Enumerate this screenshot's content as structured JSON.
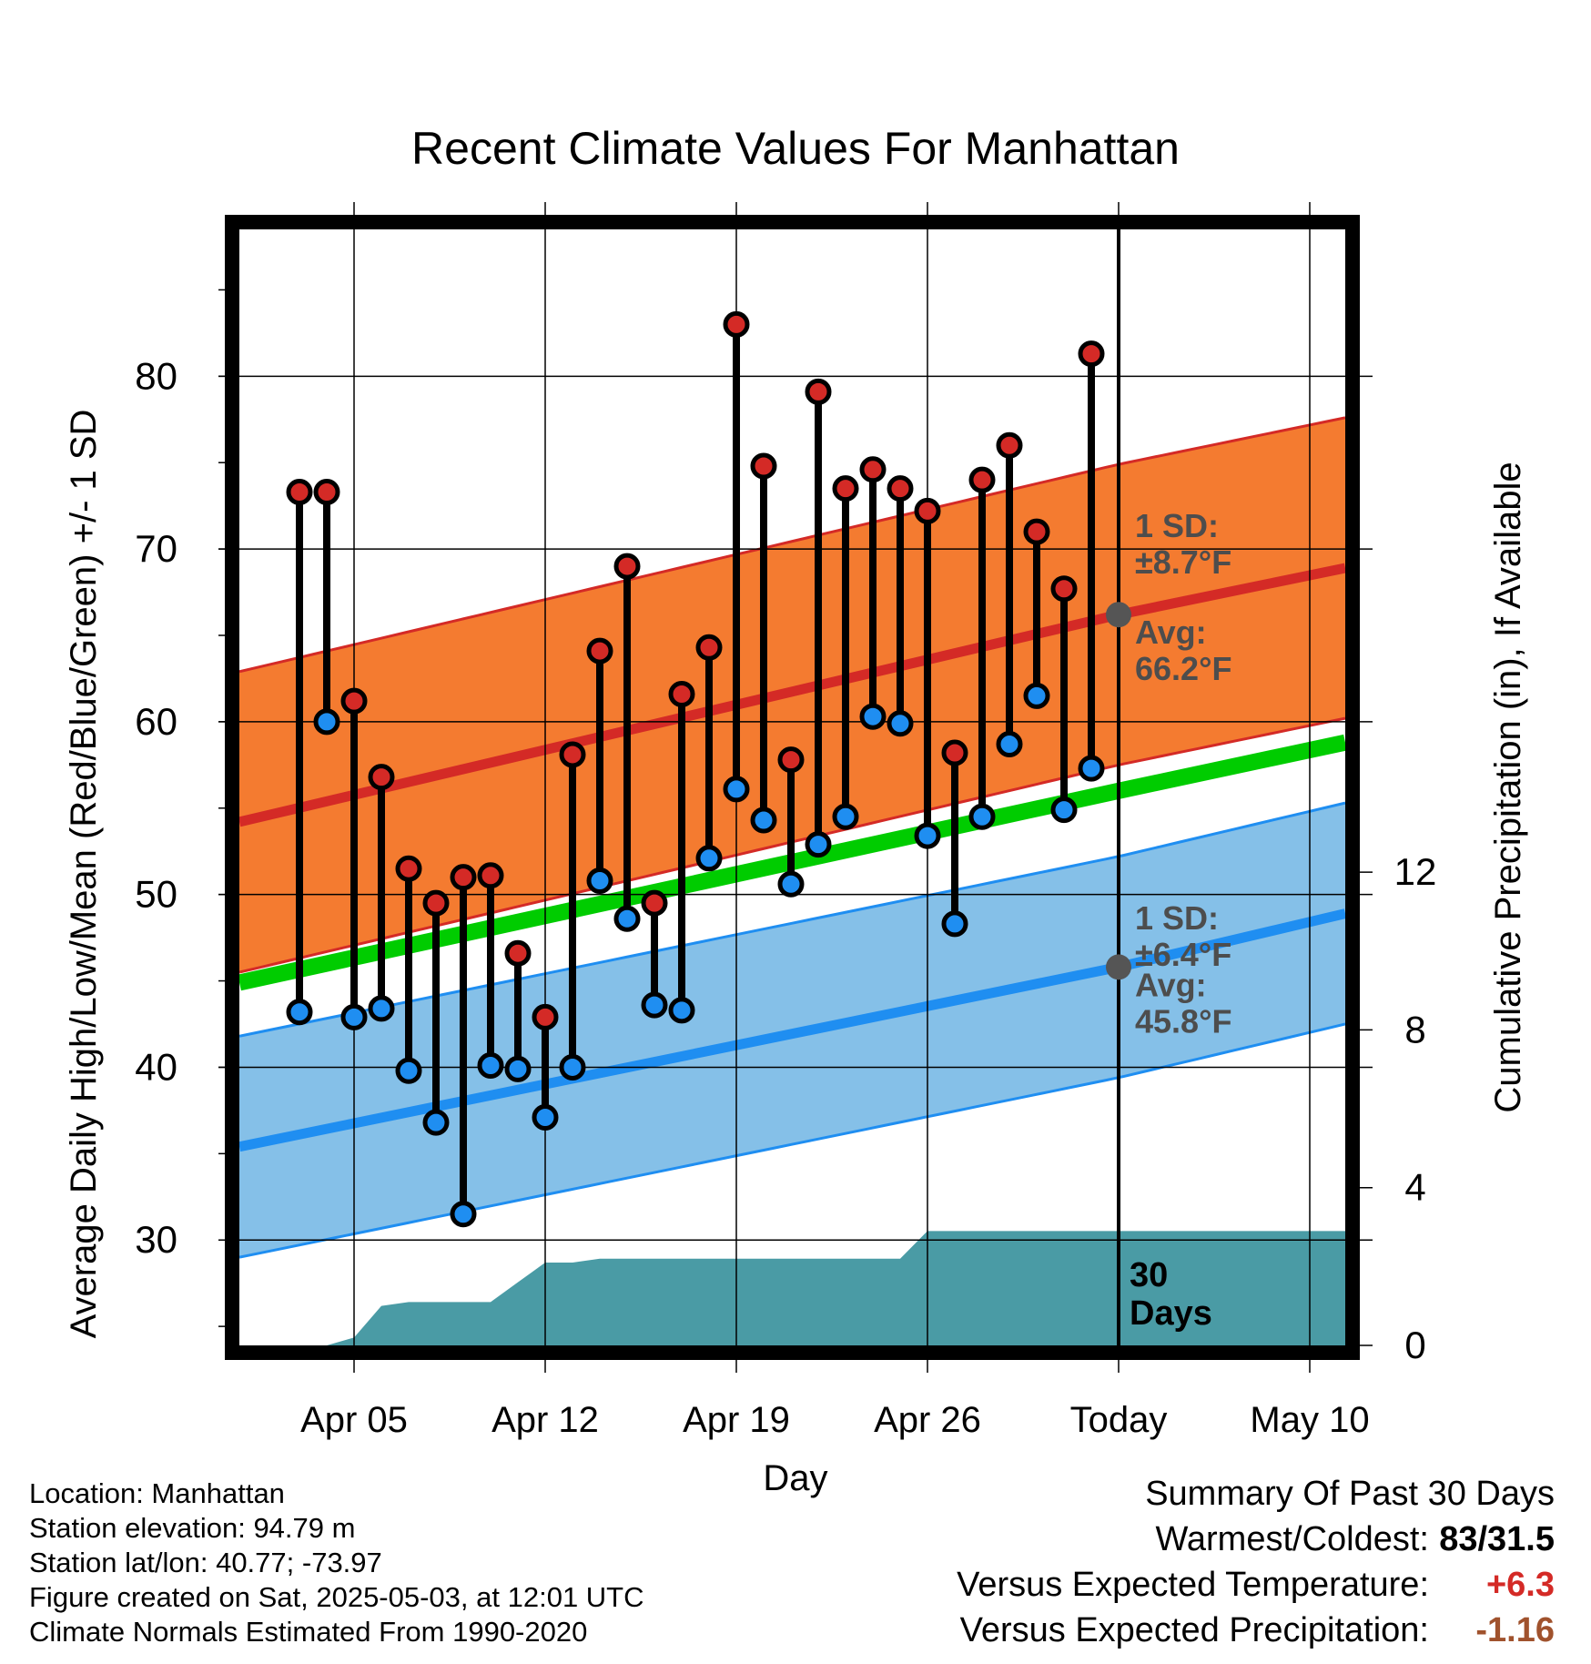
{
  "chart_data": {
    "type": "line",
    "title": "Recent Climate Values For Manhattan",
    "xlabel": "Day",
    "ylabel": "Average Daily High/Low/Mean (Red/Blue/Green) +/- 1 SD",
    "y2label": "Cumulative Precipitation (in), If Available",
    "xlim_days": [
      -32.2,
      8.3
    ],
    "ylim": [
      23.9,
      88.5
    ],
    "y2lim": [
      0,
      28.3
    ],
    "x_ticks": [
      {
        "day": -28,
        "label": "Apr 05"
      },
      {
        "day": -21,
        "label": "Apr 12"
      },
      {
        "day": -14,
        "label": "Apr 19"
      },
      {
        "day": -7,
        "label": "Apr 26"
      },
      {
        "day": 0,
        "label": "Today"
      },
      {
        "day": 7,
        "label": "May 10"
      }
    ],
    "y_ticks": [
      30,
      40,
      50,
      60,
      70,
      80
    ],
    "y2_ticks": [
      0,
      4,
      8,
      12
    ],
    "grid": true,
    "today_marker": {
      "day": 0,
      "label_line1": "30",
      "label_line2": "Days"
    },
    "normal_high": {
      "avg_days": [
        -32.2,
        0,
        8.3
      ],
      "avg": [
        54.2,
        66.2,
        68.9
      ],
      "sd": 8.7,
      "color": "#d42a26",
      "band_color": "#f47b30",
      "label_sd_line1": "1 SD:",
      "label_sd_line2": "±8.7°F",
      "label_avg_line1": "Avg:",
      "label_avg_line2": "66.2°F"
    },
    "normal_low": {
      "avg_days": [
        -32.2,
        0,
        8.3
      ],
      "avg": [
        35.4,
        45.8,
        48.9
      ],
      "sd": 6.4,
      "color": "#1f8ef1",
      "band_color": "#85c0e8",
      "label_sd_line1": "1 SD:",
      "label_sd_line2": "±6.4°F",
      "label_avg_line1": "Avg:",
      "label_avg_line2": "45.8°F"
    },
    "normal_mean": {
      "avg_days": [
        -32.2,
        0,
        8.3
      ],
      "avg": [
        44.9,
        56.0,
        58.8
      ],
      "color": "#00cc00"
    },
    "series": [
      {
        "name": "High",
        "color": "#d42a26",
        "days": [
          -30,
          -29,
          -28,
          -27,
          -26,
          -25,
          -24,
          -23,
          -22,
          -21,
          -20,
          -19,
          -18,
          -17,
          -16,
          -15,
          -14,
          -13,
          -12,
          -11,
          -10,
          -9,
          -8,
          -7,
          -6,
          -5,
          -4,
          -3,
          -2,
          -1
        ],
        "values": [
          73.3,
          73.3,
          61.2,
          56.8,
          51.5,
          49.5,
          51.0,
          51.1,
          46.6,
          42.9,
          58.1,
          64.1,
          69.0,
          49.5,
          61.6,
          64.3,
          83.0,
          74.8,
          57.8,
          79.1,
          73.5,
          74.6,
          73.5,
          72.2,
          58.2,
          74.0,
          76.0,
          71.0,
          67.7,
          81.3
        ]
      },
      {
        "name": "Low",
        "color": "#1f8ef1",
        "days": [
          -30,
          -29,
          -28,
          -27,
          -26,
          -25,
          -24,
          -23,
          -22,
          -21,
          -20,
          -19,
          -18,
          -17,
          -16,
          -15,
          -14,
          -13,
          -12,
          -11,
          -10,
          -9,
          -8,
          -7,
          -6,
          -5,
          -4,
          -3,
          -2,
          -1
        ],
        "values": [
          43.2,
          60.0,
          42.9,
          43.4,
          39.8,
          36.8,
          31.5,
          40.1,
          39.9,
          37.1,
          40.0,
          50.8,
          48.6,
          43.6,
          43.3,
          52.1,
          56.1,
          54.3,
          50.6,
          52.9,
          54.5,
          60.3,
          59.9,
          53.4,
          48.3,
          54.5,
          58.7,
          61.5,
          54.9,
          57.3
        ]
      },
      {
        "name": "Cumulative Precipitation",
        "color": "#4a9ba5",
        "days": [
          -32.2,
          -29,
          -28,
          -27,
          -26,
          -25,
          -24,
          -23,
          -22,
          -21,
          -20,
          -19,
          -18,
          -17,
          -16,
          -15,
          -14,
          -13,
          -12,
          -11,
          -10,
          -9,
          -8,
          -7,
          -6,
          -5,
          -4,
          -3,
          -2,
          -1,
          0,
          8.3
        ],
        "values": [
          0,
          0,
          0.2,
          1.0,
          1.1,
          1.1,
          1.1,
          1.1,
          1.6,
          2.1,
          2.1,
          2.2,
          2.2,
          2.2,
          2.2,
          2.2,
          2.2,
          2.2,
          2.2,
          2.2,
          2.2,
          2.2,
          2.2,
          2.9,
          2.9,
          2.9,
          2.9,
          2.9,
          2.9,
          2.9,
          2.9,
          2.9
        ]
      }
    ]
  },
  "footer": {
    "location": "Location: Manhattan",
    "elevation": "Station elevation: 94.79 m",
    "latlon": "Station lat/lon: 40.77; -73.97",
    "created": "Figure created on Sat, 2025-05-03, at 12:01 UTC",
    "normals": "Climate Normals Estimated From 1990-2020"
  },
  "summary": {
    "title": "Summary Of Past 30 Days",
    "warmest_label": "Warmest/Coldest:",
    "warmest_value": "83/31.5",
    "temp_label": "Versus Expected Temperature:",
    "temp_value": "+6.3",
    "temp_color": "#d42a26",
    "precip_label": "Versus Expected Precipitation:",
    "precip_value": "-1.16",
    "precip_color": "#a0522d"
  }
}
